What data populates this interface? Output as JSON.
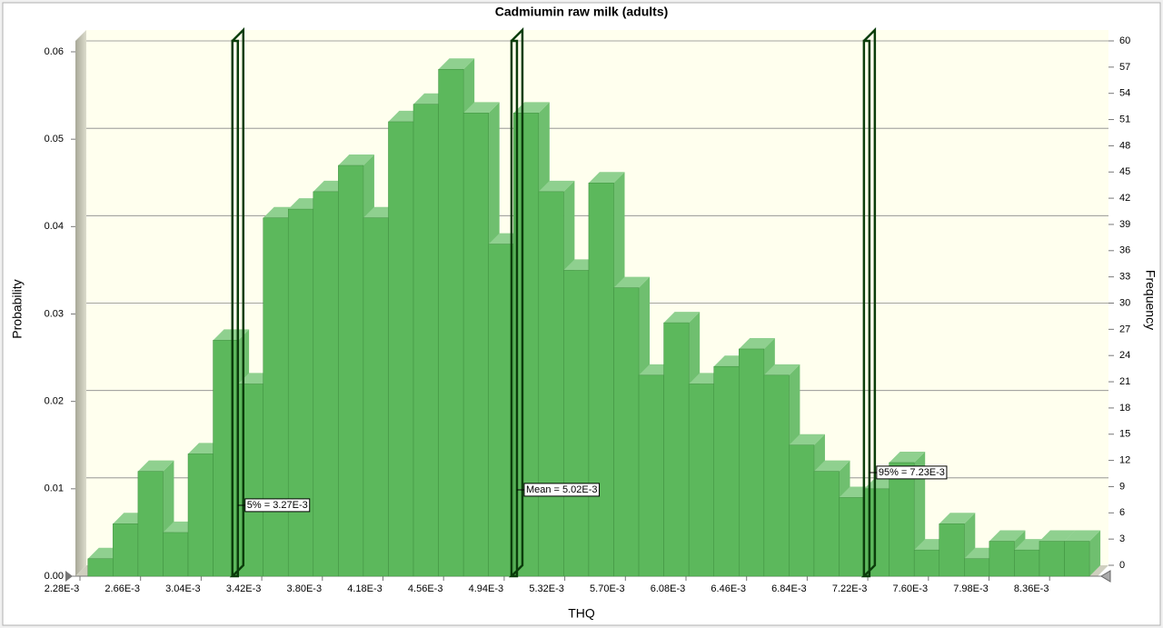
{
  "chart_data": {
    "type": "histogram",
    "title": "Cadmiumin raw milk (adults)",
    "x_label": "THQ",
    "y_label": "Probability",
    "y2_label": "Frequency",
    "bins": [
      0.00233,
      0.002487,
      0.002644,
      0.002801,
      0.002958,
      0.003115,
      0.003272,
      0.003429,
      0.003586,
      0.003743,
      0.0039,
      0.004057,
      0.004214,
      0.004371,
      0.004528,
      0.004685,
      0.004842,
      0.004999,
      0.005156,
      0.005313,
      0.00547,
      0.005627,
      0.005784,
      0.005941,
      0.006098,
      0.006255,
      0.006412,
      0.006569,
      0.006726,
      0.006883,
      0.00704,
      0.007197,
      0.007354,
      0.007511,
      0.007668,
      0.007825,
      0.007982,
      0.008139,
      0.008296,
      0.008453,
      0.00861
    ],
    "values": [
      0.002,
      0.006,
      0.012,
      0.005,
      0.014,
      0.027,
      0.022,
      0.041,
      0.042,
      0.044,
      0.047,
      0.041,
      0.052,
      0.054,
      0.058,
      0.053,
      0.038,
      0.053,
      0.044,
      0.035,
      0.045,
      0.033,
      0.023,
      0.029,
      0.022,
      0.024,
      0.026,
      0.023,
      0.015,
      0.012,
      0.009,
      0.01,
      0.013,
      0.003,
      0.006,
      0.002,
      0.004,
      0.003,
      0.004,
      0.004
    ],
    "color": "#5cb85c",
    "xlim": [
      0.00228,
      0.0087
    ],
    "xticks": [
      {
        "value": 0.00228,
        "label": "2.28E-3"
      },
      {
        "value": 0.00266,
        "label": "2.66E-3"
      },
      {
        "value": 0.00304,
        "label": "3.04E-3"
      },
      {
        "value": 0.00342,
        "label": "3.42E-3"
      },
      {
        "value": 0.0038,
        "label": "3.80E-3"
      },
      {
        "value": 0.00418,
        "label": "4.18E-3"
      },
      {
        "value": 0.00456,
        "label": "4.56E-3"
      },
      {
        "value": 0.00494,
        "label": "4.94E-3"
      },
      {
        "value": 0.00532,
        "label": "5.32E-3"
      },
      {
        "value": 0.0057,
        "label": "5.70E-3"
      },
      {
        "value": 0.00608,
        "label": "6.08E-3"
      },
      {
        "value": 0.00646,
        "label": "6.46E-3"
      },
      {
        "value": 0.00684,
        "label": "6.84E-3"
      },
      {
        "value": 0.00722,
        "label": "7.22E-3"
      },
      {
        "value": 0.0076,
        "label": "7.60E-3"
      },
      {
        "value": 0.00798,
        "label": "7.98E-3"
      },
      {
        "value": 0.00836,
        "label": "8.36E-3"
      }
    ],
    "ylim": [
      0,
      0.06
    ],
    "yticks": [
      {
        "value": 0,
        "label": "0.00"
      },
      0.01,
      0.02,
      0.03,
      0.04,
      0.05,
      0.06
    ],
    "y2lim": [
      0,
      60
    ],
    "y2ticks": [
      0,
      3,
      6,
      9,
      12,
      15,
      18,
      21,
      24,
      27,
      30,
      33,
      36,
      39,
      42,
      45,
      48,
      51,
      54,
      57,
      60
    ],
    "grid": true,
    "markers": [
      {
        "label": "5% = 3.27E-3",
        "value": 0.00327
      },
      {
        "label": "Mean = 5.02E-3",
        "value": 0.00502
      },
      {
        "label": "95% = 7.23E-3",
        "value": 0.00723
      }
    ]
  }
}
